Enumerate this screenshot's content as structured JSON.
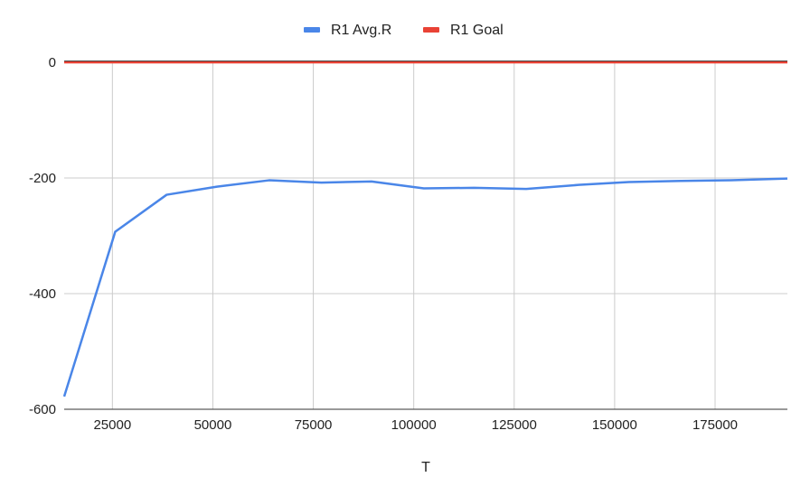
{
  "chart_data": {
    "type": "line",
    "title": "",
    "xlabel": "T",
    "ylabel": "",
    "xlim": [
      13000,
      193000
    ],
    "ylim": [
      -600,
      0
    ],
    "x_ticks": [
      25000,
      50000,
      75000,
      100000,
      125000,
      150000,
      175000
    ],
    "y_ticks": [
      0,
      -200,
      -400,
      -600
    ],
    "grid": true,
    "legend_position": "top",
    "series": [
      {
        "name": "R1 Avg.R",
        "color": "#4a86e8",
        "x": [
          13000,
          25700,
          38500,
          51000,
          64000,
          77000,
          89500,
          102500,
          115000,
          128000,
          141000,
          153500,
          166500,
          179000,
          193000
        ],
        "y": [
          -578,
          -293,
          -229,
          -215,
          -204,
          -208,
          -206,
          -218,
          -217,
          -219,
          -212,
          -207,
          -205,
          -204,
          -201
        ]
      },
      {
        "name": "R1 Goal",
        "color": "#e94235",
        "x": [
          13000,
          193000
        ],
        "y": [
          0,
          0
        ]
      }
    ]
  }
}
